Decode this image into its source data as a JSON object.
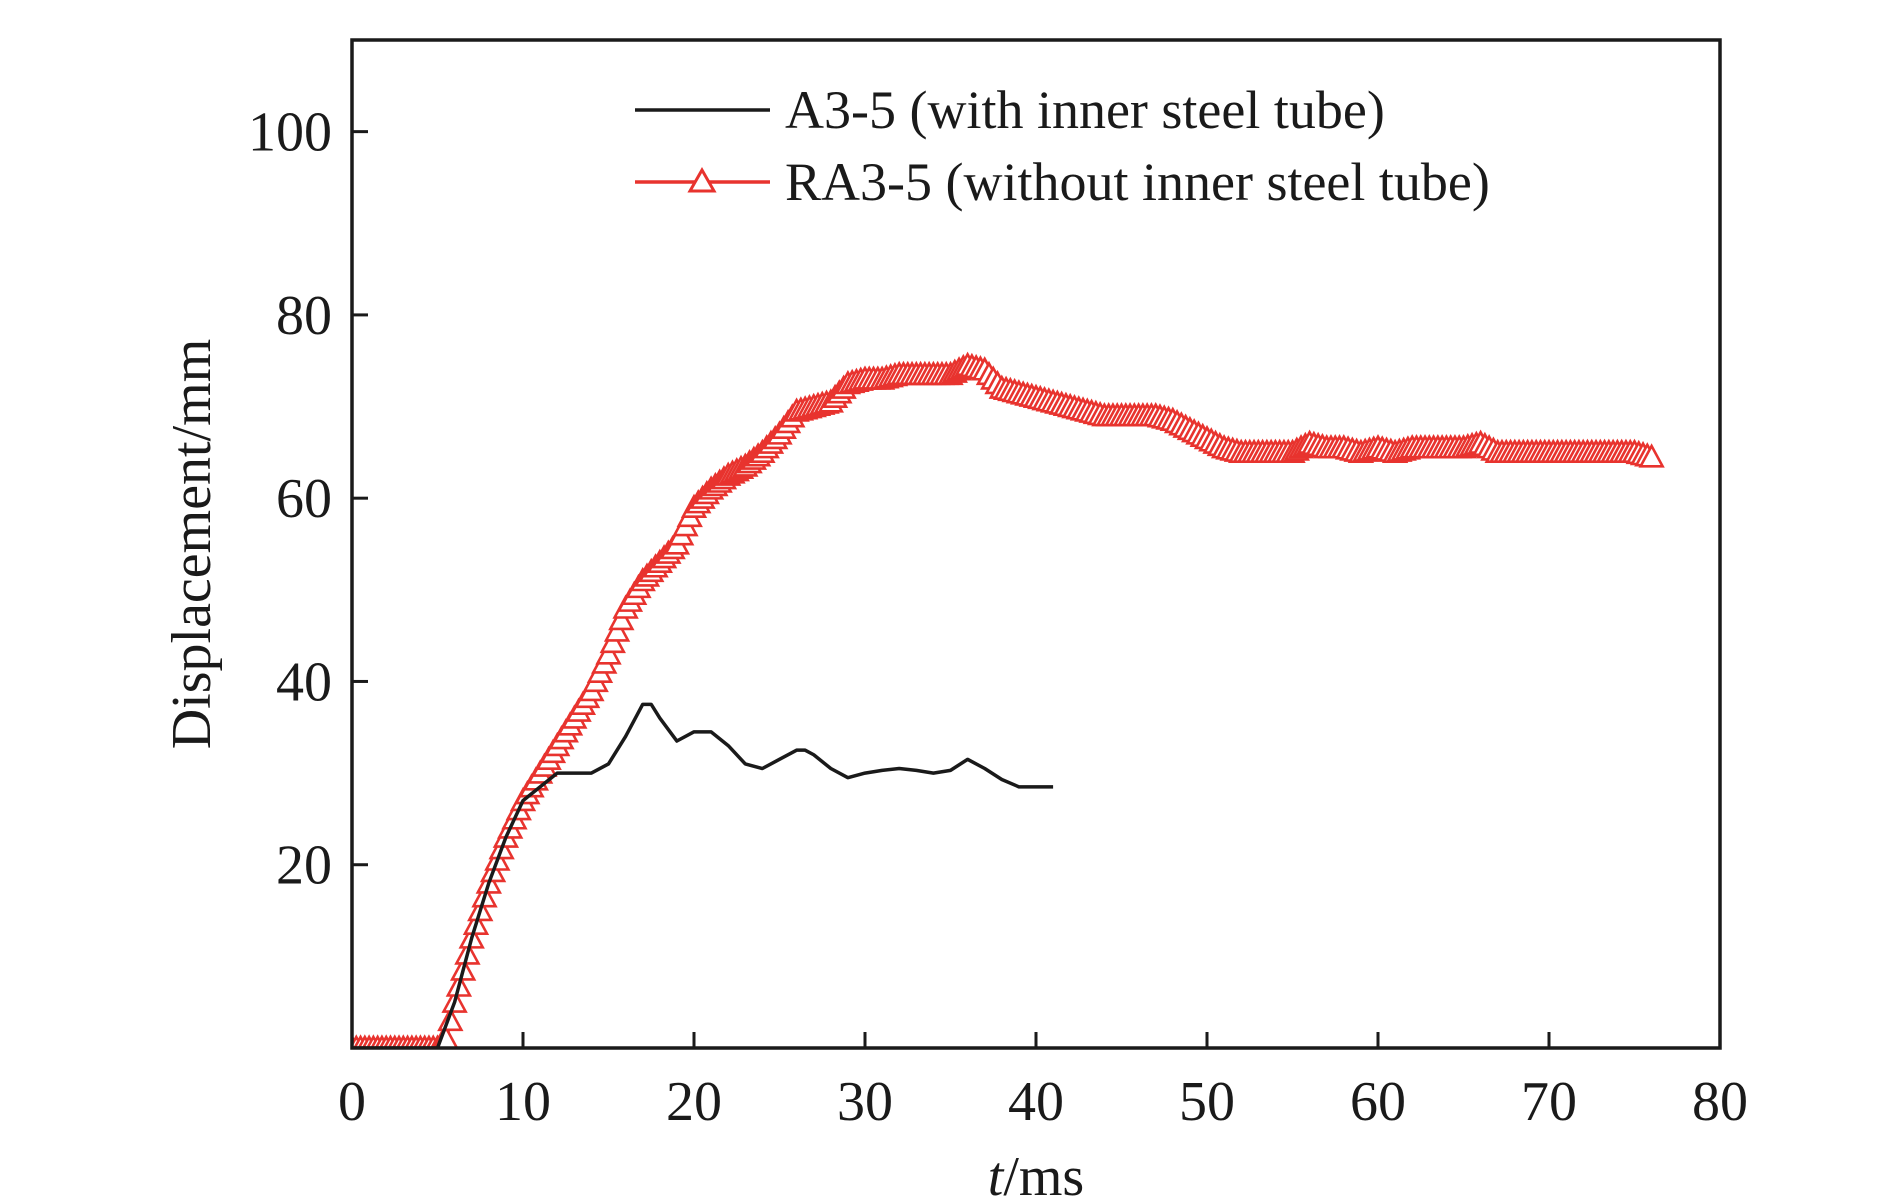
{
  "chart_data": {
    "type": "line",
    "xlabel_italic": "t",
    "xlabel_unit": "/ms",
    "ylabel": "Displacement/mm",
    "xlim": [
      0,
      80
    ],
    "ylim": [
      0,
      110
    ],
    "x_ticks": [
      0,
      10,
      20,
      30,
      40,
      50,
      60,
      70,
      80
    ],
    "y_ticks": [
      20,
      40,
      60,
      80,
      100
    ],
    "x_tick_labels": [
      "0",
      "10",
      "20",
      "30",
      "40",
      "50",
      "60",
      "70",
      "80"
    ],
    "y_tick_labels": [
      "20",
      "40",
      "60",
      "80",
      "100"
    ],
    "grid": false,
    "legend_position": "top-right",
    "series": [
      {
        "name": "A3-5 (with inner steel tube)",
        "color": "#1a1a1a",
        "marker": "none",
        "x": [
          0,
          5,
          6,
          7,
          8,
          9,
          10,
          11,
          12,
          13,
          14,
          15,
          16,
          17,
          17.5,
          18,
          19,
          20,
          21,
          22,
          23,
          24,
          25,
          26,
          26.5,
          27,
          28,
          29,
          30,
          31,
          32,
          33,
          34,
          35,
          36,
          37,
          38,
          39,
          40,
          41
        ],
        "y": [
          0,
          0,
          5,
          12,
          18,
          23,
          27,
          28.5,
          30,
          30,
          30,
          31,
          34,
          37.5,
          37.5,
          36,
          33.5,
          34.5,
          34.5,
          33,
          31,
          30.5,
          31.5,
          32.5,
          32.5,
          32,
          30.5,
          29.5,
          30,
          30.3,
          30.5,
          30.3,
          30,
          30.3,
          31.5,
          30.5,
          29.3,
          28.5,
          28.5,
          28.5
        ]
      },
      {
        "name": "RA3-5 (without inner steel tube)",
        "color": "#e8332e",
        "marker": "triangle",
        "x": [
          0,
          1,
          2,
          3,
          4,
          5,
          5.5,
          6,
          7,
          8,
          9,
          10,
          11,
          12,
          13,
          14,
          15,
          16,
          17,
          18,
          19,
          20,
          21,
          22,
          23,
          24,
          25,
          26,
          27,
          28,
          29,
          30,
          31,
          32,
          33,
          34,
          35,
          36,
          37,
          38,
          39,
          40,
          41,
          42,
          43,
          44,
          45,
          46,
          47,
          48,
          49,
          50,
          51,
          52,
          53,
          54,
          55,
          56,
          57,
          58,
          59,
          60,
          61,
          62,
          63,
          64,
          65,
          66,
          67,
          68,
          69,
          70,
          71,
          72,
          73,
          74,
          75,
          76
        ],
        "y": [
          0,
          0,
          0,
          0,
          0,
          0,
          1,
          5,
          12,
          18,
          23,
          27,
          30,
          33,
          36,
          39,
          43,
          48,
          51,
          53,
          55,
          59,
          61,
          62.5,
          63.5,
          65,
          67,
          69.5,
          70,
          70.5,
          72.5,
          73,
          73,
          73.5,
          73.5,
          73.5,
          73.5,
          74.5,
          74,
          72,
          71.5,
          71,
          70.5,
          70,
          69.5,
          69,
          69,
          69,
          69,
          68.5,
          67.5,
          66.5,
          65.5,
          65,
          65,
          65,
          65,
          66,
          65.5,
          65.5,
          65,
          65.5,
          65,
          65.5,
          65.5,
          65.5,
          65.5,
          66,
          65,
          65,
          65,
          65,
          65,
          65,
          65,
          65,
          65,
          64.5
        ]
      }
    ]
  }
}
